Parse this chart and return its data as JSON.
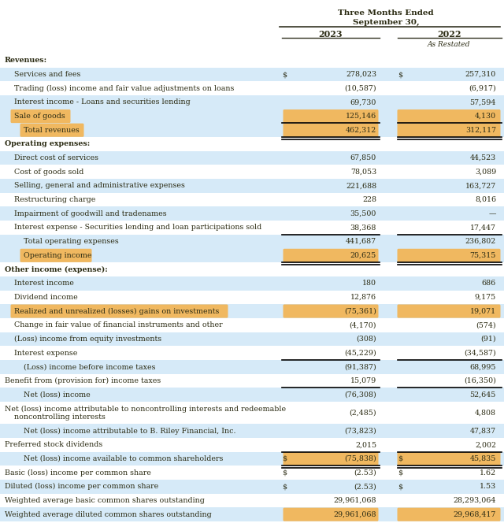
{
  "title_line1": "Three Months Ended",
  "title_line2": "September 30,",
  "col2023": "2023",
  "col2022": "2022",
  "as_restated": "As Restated",
  "light_blue": "#d6eaf8",
  "orange": "#f0b860",
  "white": "#ffffff",
  "text_color": "#2c2c14",
  "border_color": "#1a1a00",
  "rows": [
    {
      "label": "Revenues:",
      "v23": "",
      "v22": "",
      "indent": 0,
      "bold": true,
      "bg": "white",
      "hl_label": false,
      "hl_val": false,
      "border_top": false,
      "border_bot": false,
      "dbl_bot": false,
      "dollar23": false,
      "dollar22": false,
      "multiline": false
    },
    {
      "label": "Services and fees",
      "v23": "278,023",
      "v22": "257,310",
      "indent": 1,
      "bold": false,
      "bg": "light",
      "hl_label": false,
      "hl_val": false,
      "border_top": false,
      "border_bot": false,
      "dbl_bot": false,
      "dollar23": true,
      "dollar22": true,
      "multiline": false
    },
    {
      "label": "Trading (loss) income and fair value adjustments on loans",
      "v23": "(10,587)",
      "v22": "(6,917)",
      "indent": 1,
      "bold": false,
      "bg": "white",
      "hl_label": false,
      "hl_val": false,
      "border_top": false,
      "border_bot": false,
      "dbl_bot": false,
      "dollar23": false,
      "dollar22": false,
      "multiline": false
    },
    {
      "label": "Interest income - Loans and securities lending",
      "v23": "69,730",
      "v22": "57,594",
      "indent": 1,
      "bold": false,
      "bg": "light",
      "hl_label": false,
      "hl_val": false,
      "border_top": false,
      "border_bot": false,
      "dbl_bot": false,
      "dollar23": false,
      "dollar22": false,
      "multiline": false
    },
    {
      "label": "Sale of goods",
      "v23": "125,146",
      "v22": "4,130",
      "indent": 1,
      "bold": false,
      "bg": "light",
      "hl_label": true,
      "hl_val": true,
      "border_top": false,
      "border_bot": false,
      "dbl_bot": false,
      "dollar23": false,
      "dollar22": false,
      "multiline": false
    },
    {
      "label": "Total revenues",
      "v23": "462,312",
      "v22": "312,117",
      "indent": 2,
      "bold": false,
      "bg": "light",
      "hl_label": true,
      "hl_val": true,
      "border_top": true,
      "border_bot": false,
      "dbl_bot": true,
      "dollar23": false,
      "dollar22": false,
      "multiline": false
    },
    {
      "label": "Operating expenses:",
      "v23": "",
      "v22": "",
      "indent": 0,
      "bold": true,
      "bg": "white",
      "hl_label": false,
      "hl_val": false,
      "border_top": false,
      "border_bot": false,
      "dbl_bot": false,
      "dollar23": false,
      "dollar22": false,
      "multiline": false
    },
    {
      "label": "Direct cost of services",
      "v23": "67,850",
      "v22": "44,523",
      "indent": 1,
      "bold": false,
      "bg": "light",
      "hl_label": false,
      "hl_val": false,
      "border_top": false,
      "border_bot": false,
      "dbl_bot": false,
      "dollar23": false,
      "dollar22": false,
      "multiline": false
    },
    {
      "label": "Cost of goods sold",
      "v23": "78,053",
      "v22": "3,089",
      "indent": 1,
      "bold": false,
      "bg": "white",
      "hl_label": false,
      "hl_val": false,
      "border_top": false,
      "border_bot": false,
      "dbl_bot": false,
      "dollar23": false,
      "dollar22": false,
      "multiline": false
    },
    {
      "label": "Selling, general and administrative expenses",
      "v23": "221,688",
      "v22": "163,727",
      "indent": 1,
      "bold": false,
      "bg": "light",
      "hl_label": false,
      "hl_val": false,
      "border_top": false,
      "border_bot": false,
      "dbl_bot": false,
      "dollar23": false,
      "dollar22": false,
      "multiline": false
    },
    {
      "label": "Restructuring charge",
      "v23": "228",
      "v22": "8,016",
      "indent": 1,
      "bold": false,
      "bg": "white",
      "hl_label": false,
      "hl_val": false,
      "border_top": false,
      "border_bot": false,
      "dbl_bot": false,
      "dollar23": false,
      "dollar22": false,
      "multiline": false
    },
    {
      "label": "Impairment of goodwill and tradenames",
      "v23": "35,500",
      "v22": "—",
      "indent": 1,
      "bold": false,
      "bg": "light",
      "hl_label": false,
      "hl_val": false,
      "border_top": false,
      "border_bot": false,
      "dbl_bot": false,
      "dollar23": false,
      "dollar22": false,
      "multiline": false
    },
    {
      "label": "Interest expense - Securities lending and loan participations sold",
      "v23": "38,368",
      "v22": "17,447",
      "indent": 1,
      "bold": false,
      "bg": "white",
      "hl_label": false,
      "hl_val": false,
      "border_top": false,
      "border_bot": false,
      "dbl_bot": false,
      "dollar23": false,
      "dollar22": false,
      "multiline": false
    },
    {
      "label": "Total operating expenses",
      "v23": "441,687",
      "v22": "236,802",
      "indent": 2,
      "bold": false,
      "bg": "light",
      "hl_label": false,
      "hl_val": false,
      "border_top": true,
      "border_bot": false,
      "dbl_bot": false,
      "dollar23": false,
      "dollar22": false,
      "multiline": false
    },
    {
      "label": "Operating income",
      "v23": "20,625",
      "v22": "75,315",
      "indent": 2,
      "bold": false,
      "bg": "light",
      "hl_label": true,
      "hl_val": true,
      "border_top": false,
      "border_bot": false,
      "dbl_bot": true,
      "dollar23": false,
      "dollar22": false,
      "multiline": false
    },
    {
      "label": "Other income (expense):",
      "v23": "",
      "v22": "",
      "indent": 0,
      "bold": true,
      "bg": "white",
      "hl_label": false,
      "hl_val": false,
      "border_top": false,
      "border_bot": false,
      "dbl_bot": false,
      "dollar23": false,
      "dollar22": false,
      "multiline": false
    },
    {
      "label": "Interest income",
      "v23": "180",
      "v22": "686",
      "indent": 1,
      "bold": false,
      "bg": "light",
      "hl_label": false,
      "hl_val": false,
      "border_top": false,
      "border_bot": false,
      "dbl_bot": false,
      "dollar23": false,
      "dollar22": false,
      "multiline": false
    },
    {
      "label": "Dividend income",
      "v23": "12,876",
      "v22": "9,175",
      "indent": 1,
      "bold": false,
      "bg": "white",
      "hl_label": false,
      "hl_val": false,
      "border_top": false,
      "border_bot": false,
      "dbl_bot": false,
      "dollar23": false,
      "dollar22": false,
      "multiline": false
    },
    {
      "label": "Realized and unrealized (losses) gains on investments",
      "v23": "(75,361)",
      "v22": "19,071",
      "indent": 1,
      "bold": false,
      "bg": "light",
      "hl_label": true,
      "hl_val": true,
      "border_top": false,
      "border_bot": false,
      "dbl_bot": false,
      "dollar23": false,
      "dollar22": false,
      "multiline": false
    },
    {
      "label": "Change in fair value of financial instruments and other",
      "v23": "(4,170)",
      "v22": "(574)",
      "indent": 1,
      "bold": false,
      "bg": "white",
      "hl_label": false,
      "hl_val": false,
      "border_top": false,
      "border_bot": false,
      "dbl_bot": false,
      "dollar23": false,
      "dollar22": false,
      "multiline": false
    },
    {
      "label": "(Loss) income from equity investments",
      "v23": "(308)",
      "v22": "(91)",
      "indent": 1,
      "bold": false,
      "bg": "light",
      "hl_label": false,
      "hl_val": false,
      "border_top": false,
      "border_bot": false,
      "dbl_bot": false,
      "dollar23": false,
      "dollar22": false,
      "multiline": false
    },
    {
      "label": "Interest expense",
      "v23": "(45,229)",
      "v22": "(34,587)",
      "indent": 1,
      "bold": false,
      "bg": "white",
      "hl_label": false,
      "hl_val": false,
      "border_top": false,
      "border_bot": true,
      "dbl_bot": false,
      "dollar23": false,
      "dollar22": false,
      "multiline": false
    },
    {
      "label": "(Loss) income before income taxes",
      "v23": "(91,387)",
      "v22": "68,995",
      "indent": 2,
      "bold": false,
      "bg": "light",
      "hl_label": false,
      "hl_val": false,
      "border_top": false,
      "border_bot": false,
      "dbl_bot": false,
      "dollar23": false,
      "dollar22": false,
      "multiline": false
    },
    {
      "label": "Benefit from (provision for) income taxes",
      "v23": "15,079",
      "v22": "(16,350)",
      "indent": 0,
      "bold": false,
      "bg": "white",
      "hl_label": false,
      "hl_val": false,
      "border_top": false,
      "border_bot": false,
      "dbl_bot": false,
      "dollar23": false,
      "dollar22": false,
      "multiline": false
    },
    {
      "label": "Net (loss) income",
      "v23": "(76,308)",
      "v22": "52,645",
      "indent": 2,
      "bold": false,
      "bg": "light",
      "hl_label": false,
      "hl_val": false,
      "border_top": true,
      "border_bot": false,
      "dbl_bot": false,
      "dollar23": false,
      "dollar22": false,
      "multiline": false
    },
    {
      "label": "Net (loss) income attributable to noncontrolling interests and redeemable\nnoncontrolling interests",
      "v23": "(2,485)",
      "v22": "4,808",
      "indent": 0,
      "bold": false,
      "bg": "white",
      "hl_label": false,
      "hl_val": false,
      "border_top": false,
      "border_bot": false,
      "dbl_bot": false,
      "dollar23": false,
      "dollar22": false,
      "multiline": true
    },
    {
      "label": "Net (loss) income attributable to B. Riley Financial, Inc.",
      "v23": "(73,823)",
      "v22": "47,837",
      "indent": 2,
      "bold": false,
      "bg": "light",
      "hl_label": false,
      "hl_val": false,
      "border_top": false,
      "border_bot": false,
      "dbl_bot": false,
      "dollar23": false,
      "dollar22": false,
      "multiline": false
    },
    {
      "label": "Preferred stock dividends",
      "v23": "2,015",
      "v22": "2,002",
      "indent": 0,
      "bold": false,
      "bg": "white",
      "hl_label": false,
      "hl_val": false,
      "border_top": false,
      "border_bot": false,
      "dbl_bot": false,
      "dollar23": false,
      "dollar22": false,
      "multiline": false
    },
    {
      "label": "Net (loss) income available to common shareholders",
      "v23": "(75,838)",
      "v22": "45,835",
      "indent": 2,
      "bold": false,
      "bg": "light",
      "hl_label": false,
      "hl_val": true,
      "border_top": true,
      "border_bot": false,
      "dbl_bot": true,
      "dollar23": true,
      "dollar22": true,
      "multiline": false
    },
    {
      "label": "Basic (loss) income per common share",
      "v23": "(2.53)",
      "v22": "1.62",
      "indent": 0,
      "bold": false,
      "bg": "white",
      "hl_label": false,
      "hl_val": false,
      "border_top": false,
      "border_bot": false,
      "dbl_bot": false,
      "dollar23": true,
      "dollar22": true,
      "multiline": false
    },
    {
      "label": "Diluted (loss) income per common share",
      "v23": "(2.53)",
      "v22": "1.53",
      "indent": 0,
      "bold": false,
      "bg": "light",
      "hl_label": false,
      "hl_val": false,
      "border_top": false,
      "border_bot": false,
      "dbl_bot": false,
      "dollar23": true,
      "dollar22": true,
      "multiline": false
    },
    {
      "label": "Weighted average basic common shares outstanding",
      "v23": "29,961,068",
      "v22": "28,293,064",
      "indent": 0,
      "bold": false,
      "bg": "white",
      "hl_label": false,
      "hl_val": false,
      "border_top": false,
      "border_bot": false,
      "dbl_bot": false,
      "dollar23": false,
      "dollar22": false,
      "multiline": false
    },
    {
      "label": "Weighted average diluted common shares outstanding",
      "v23": "29,961,068",
      "v22": "29,968,417",
      "indent": 0,
      "bold": false,
      "bg": "light",
      "hl_label": false,
      "hl_val": true,
      "border_top": false,
      "border_bot": false,
      "dbl_bot": false,
      "dollar23": false,
      "dollar22": false,
      "multiline": false
    }
  ]
}
